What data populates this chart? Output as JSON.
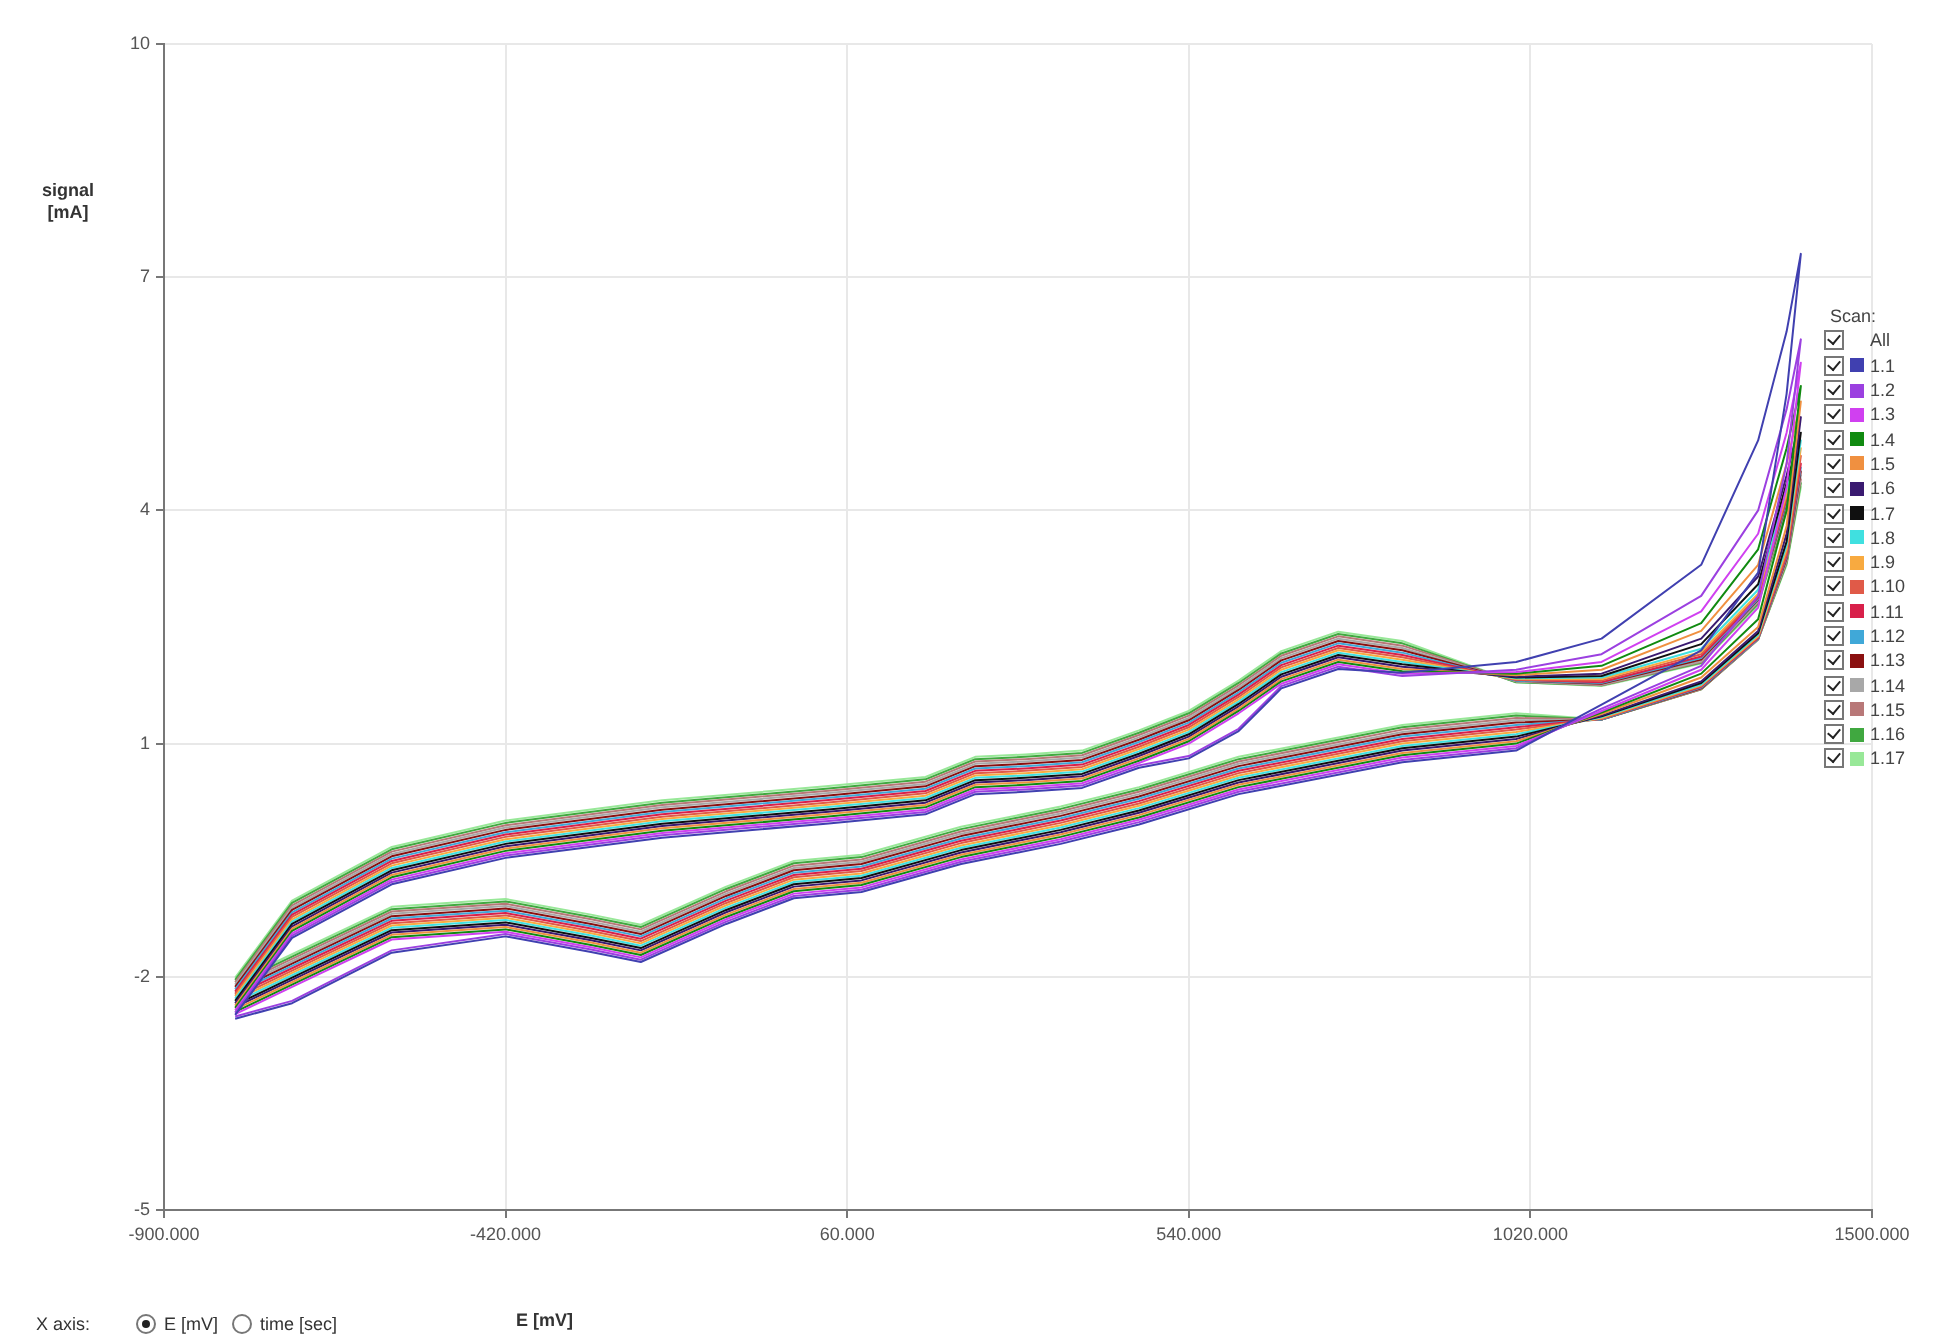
{
  "chart_data": {
    "type": "line",
    "xlabel": "E [mV]",
    "ylabel": "signal [mA]",
    "legend_title": "Scan:",
    "legend": "right",
    "grid": true,
    "annotations": [
      "All",
      "X axis:",
      "E [mV]",
      "time [sec]"
    ],
    "xlim": [
      -900,
      1500
    ],
    "ylim": [
      -5,
      10
    ],
    "xticks": [
      {
        "value": -900,
        "label": "-900.000"
      },
      {
        "value": -420,
        "label": "-420.000"
      },
      {
        "value": 60,
        "label": "60.000"
      },
      {
        "value": 540,
        "label": "540.000"
      },
      {
        "value": 1020,
        "label": "1020.000"
      },
      {
        "value": 1500,
        "label": "1500.000"
      }
    ],
    "yticks": [
      -5,
      -2,
      1,
      4,
      7,
      10
    ],
    "x": [
      -800,
      -720,
      -580,
      -420,
      -200,
      30,
      170,
      240,
      310,
      390,
      470,
      540,
      610,
      670,
      750,
      840,
      1000,
      1120,
      1260,
      1340,
      1380,
      1400,
      1380,
      1340,
      1260,
      1120,
      1000,
      840,
      610,
      470,
      360,
      220,
      80,
      -15,
      -110,
      -230,
      -300,
      -420,
      -580,
      -720,
      -800
    ],
    "series": [
      {
        "name": "1.1",
        "color": "#4040b0",
        "values": [
          -2.49,
          -1.5,
          -0.81,
          -0.47,
          -0.21,
          -0.03,
          0.09,
          0.35,
          0.38,
          0.43,
          0.69,
          0.81,
          1.16,
          1.71,
          1.96,
          1.91,
          2.05,
          2.35,
          3.3,
          4.9,
          6.3,
          7.3,
          5.5,
          3.2,
          2.2,
          1.5,
          0.91,
          0.76,
          0.35,
          -0.04,
          -0.29,
          -0.55,
          -0.91,
          -0.99,
          -1.32,
          -1.81,
          -1.68,
          -1.48,
          -1.69,
          -2.34,
          -2.54
        ]
      },
      {
        "name": "1.2",
        "color": "#9b40e0",
        "values": [
          -2.46,
          -1.47,
          -0.78,
          -0.44,
          -0.18,
          0.0,
          0.12,
          0.38,
          0.41,
          0.46,
          0.72,
          0.84,
          1.19,
          1.74,
          1.99,
          1.87,
          1.95,
          2.15,
          2.9,
          4.0,
          5.3,
          6.2,
          4.6,
          2.9,
          2.0,
          1.45,
          0.94,
          0.79,
          0.38,
          -0.01,
          -0.26,
          -0.52,
          -0.88,
          -0.96,
          -1.29,
          -1.78,
          -1.65,
          -1.45,
          -1.66,
          -2.31,
          -2.51
        ]
      },
      {
        "name": "1.3",
        "color": "#d040f0",
        "values": [
          -2.43,
          -1.44,
          -0.75,
          -0.41,
          -0.15,
          0.03,
          0.15,
          0.41,
          0.44,
          0.49,
          0.75,
          1.0,
          1.39,
          1.77,
          2.02,
          1.9,
          1.92,
          2.05,
          2.7,
          3.7,
          5.0,
          5.9,
          4.3,
          2.75,
          1.95,
          1.42,
          0.97,
          0.82,
          0.41,
          0.02,
          -0.23,
          -0.49,
          -0.85,
          -0.93,
          -1.26,
          -1.75,
          -1.62,
          -1.42,
          -1.52,
          -2.13,
          -2.48
        ]
      },
      {
        "name": "1.4",
        "color": "#108a10",
        "values": [
          -2.4,
          -1.41,
          -0.72,
          -0.38,
          -0.12,
          0.06,
          0.18,
          0.44,
          0.47,
          0.52,
          0.78,
          1.03,
          1.42,
          1.8,
          2.05,
          1.93,
          1.9,
          2.0,
          2.55,
          3.5,
          4.8,
          5.6,
          4.0,
          2.6,
          1.9,
          1.4,
          1.0,
          0.85,
          0.44,
          0.05,
          -0.2,
          -0.46,
          -0.82,
          -0.9,
          -1.23,
          -1.72,
          -1.59,
          -1.39,
          -1.49,
          -2.1,
          -2.45
        ]
      },
      {
        "name": "1.5",
        "color": "#f09040",
        "values": [
          -2.37,
          -1.38,
          -0.69,
          -0.35,
          -0.09,
          0.09,
          0.21,
          0.47,
          0.5,
          0.55,
          0.81,
          1.06,
          1.45,
          1.83,
          2.08,
          1.96,
          1.88,
          1.95,
          2.45,
          3.3,
          4.6,
          5.4,
          3.8,
          2.5,
          1.85,
          1.38,
          1.03,
          0.88,
          0.47,
          0.08,
          -0.17,
          -0.43,
          -0.79,
          -0.87,
          -1.2,
          -1.69,
          -1.56,
          -1.36,
          -1.46,
          -2.07,
          -2.42
        ]
      },
      {
        "name": "1.6",
        "color": "#3a1a70",
        "values": [
          -2.34,
          -1.35,
          -0.66,
          -0.32,
          -0.06,
          0.12,
          0.24,
          0.5,
          0.53,
          0.58,
          0.84,
          1.09,
          1.48,
          1.86,
          2.11,
          1.99,
          1.86,
          1.9,
          2.35,
          3.15,
          4.45,
          5.2,
          3.7,
          2.45,
          1.8,
          1.36,
          1.06,
          0.91,
          0.5,
          0.11,
          -0.14,
          -0.4,
          -0.76,
          -0.84,
          -1.17,
          -1.66,
          -1.53,
          -1.33,
          -1.43,
          -2.04,
          -2.39
        ]
      },
      {
        "name": "1.7",
        "color": "#101010",
        "values": [
          -2.31,
          -1.32,
          -0.63,
          -0.29,
          -0.03,
          0.15,
          0.27,
          0.53,
          0.56,
          0.61,
          0.87,
          1.12,
          1.51,
          1.89,
          2.14,
          2.02,
          1.85,
          1.87,
          2.28,
          3.05,
          4.35,
          5.0,
          3.6,
          2.42,
          1.78,
          1.35,
          1.09,
          0.94,
          0.53,
          0.14,
          -0.11,
          -0.37,
          -0.73,
          -0.81,
          -1.14,
          -1.63,
          -1.5,
          -1.3,
          -1.4,
          -2.01,
          -2.36
        ]
      },
      {
        "name": "1.8",
        "color": "#40e0e0",
        "values": [
          -2.28,
          -1.29,
          -0.6,
          -0.26,
          0.0,
          0.18,
          0.3,
          0.56,
          0.59,
          0.64,
          0.9,
          1.15,
          1.54,
          1.92,
          2.17,
          2.05,
          1.84,
          1.85,
          2.22,
          2.98,
          4.28,
          4.9,
          3.55,
          2.4,
          1.76,
          1.34,
          1.12,
          0.97,
          0.56,
          0.17,
          -0.08,
          -0.34,
          -0.7,
          -0.78,
          -1.11,
          -1.6,
          -1.47,
          -1.27,
          -1.37,
          -1.98,
          -2.33
        ]
      },
      {
        "name": "1.9",
        "color": "#f8aa40",
        "values": [
          -2.25,
          -1.26,
          -0.57,
          -0.23,
          0.03,
          0.21,
          0.33,
          0.59,
          0.62,
          0.67,
          0.93,
          1.18,
          1.57,
          1.95,
          2.2,
          2.08,
          1.83,
          1.83,
          2.18,
          2.93,
          4.22,
          4.8,
          3.5,
          2.38,
          1.75,
          1.33,
          1.15,
          1.0,
          0.59,
          0.2,
          -0.05,
          -0.31,
          -0.67,
          -0.75,
          -1.08,
          -1.57,
          -1.44,
          -1.24,
          -1.34,
          -1.95,
          -2.3
        ]
      },
      {
        "name": "1.10",
        "color": "#e05a48",
        "values": [
          -2.22,
          -1.23,
          -0.54,
          -0.2,
          0.06,
          0.24,
          0.36,
          0.62,
          0.65,
          0.7,
          0.96,
          1.21,
          1.6,
          1.98,
          2.23,
          2.11,
          1.82,
          1.81,
          2.15,
          2.9,
          4.18,
          4.7,
          3.45,
          2.37,
          1.74,
          1.32,
          1.18,
          1.03,
          0.62,
          0.23,
          -0.02,
          -0.28,
          -0.64,
          -0.72,
          -1.05,
          -1.54,
          -1.41,
          -1.21,
          -1.31,
          -1.92,
          -2.27
        ]
      },
      {
        "name": "1.11",
        "color": "#d8204a",
        "values": [
          -2.19,
          -1.2,
          -0.51,
          -0.17,
          0.09,
          0.27,
          0.39,
          0.65,
          0.68,
          0.73,
          0.99,
          1.24,
          1.63,
          2.01,
          2.26,
          2.14,
          1.82,
          1.79,
          2.12,
          2.88,
          4.15,
          4.6,
          3.42,
          2.36,
          1.73,
          1.32,
          1.21,
          1.06,
          0.65,
          0.26,
          0.01,
          -0.25,
          -0.61,
          -0.69,
          -1.02,
          -1.51,
          -1.38,
          -1.18,
          -1.28,
          -1.89,
          -2.24
        ]
      },
      {
        "name": "1.12",
        "color": "#40a8d8",
        "values": [
          -2.16,
          -1.17,
          -0.48,
          -0.14,
          0.12,
          0.3,
          0.42,
          0.68,
          0.71,
          0.76,
          1.02,
          1.27,
          1.66,
          2.04,
          2.29,
          2.17,
          1.81,
          1.78,
          2.1,
          2.86,
          4.12,
          4.55,
          3.4,
          2.35,
          1.72,
          1.31,
          1.24,
          1.09,
          0.68,
          0.29,
          0.04,
          -0.22,
          -0.58,
          -0.66,
          -0.99,
          -1.48,
          -1.35,
          -1.15,
          -1.25,
          -1.86,
          -2.21
        ]
      },
      {
        "name": "1.13",
        "color": "#8a1010",
        "values": [
          -2.13,
          -1.14,
          -0.45,
          -0.11,
          0.15,
          0.33,
          0.45,
          0.71,
          0.74,
          0.79,
          1.05,
          1.3,
          1.69,
          2.07,
          2.32,
          2.2,
          1.81,
          1.77,
          2.08,
          2.85,
          4.1,
          4.5,
          3.38,
          2.35,
          1.71,
          1.31,
          1.27,
          1.12,
          0.71,
          0.32,
          0.07,
          -0.19,
          -0.55,
          -0.63,
          -0.96,
          -1.45,
          -1.32,
          -1.12,
          -1.22,
          -1.83,
          -2.18
        ]
      },
      {
        "name": "1.14",
        "color": "#a8a8a8",
        "values": [
          -2.1,
          -1.11,
          -0.42,
          -0.08,
          0.18,
          0.36,
          0.48,
          0.74,
          0.77,
          0.82,
          1.08,
          1.33,
          1.72,
          2.1,
          2.35,
          2.23,
          1.8,
          1.76,
          2.06,
          2.83,
          4.07,
          4.45,
          3.36,
          2.34,
          1.71,
          1.31,
          1.3,
          1.15,
          0.74,
          0.35,
          0.1,
          -0.16,
          -0.52,
          -0.6,
          -0.93,
          -1.42,
          -1.29,
          -1.09,
          -1.19,
          -1.8,
          -2.15
        ]
      },
      {
        "name": "1.15",
        "color": "#b87878",
        "values": [
          -2.07,
          -1.08,
          -0.39,
          -0.05,
          0.21,
          0.39,
          0.51,
          0.77,
          0.8,
          0.85,
          1.11,
          1.36,
          1.75,
          2.13,
          2.38,
          2.26,
          1.8,
          1.75,
          2.05,
          2.82,
          4.05,
          4.4,
          3.34,
          2.34,
          1.7,
          1.31,
          1.33,
          1.18,
          0.77,
          0.38,
          0.13,
          -0.13,
          -0.49,
          -0.57,
          -0.9,
          -1.39,
          -1.26,
          -1.06,
          -1.16,
          -1.77,
          -2.12
        ]
      },
      {
        "name": "1.16",
        "color": "#40a840",
        "values": [
          -2.04,
          -1.05,
          -0.36,
          -0.02,
          0.24,
          0.42,
          0.54,
          0.8,
          0.83,
          0.88,
          1.14,
          1.39,
          1.78,
          2.16,
          2.41,
          2.29,
          1.79,
          1.75,
          2.04,
          2.8,
          4.03,
          4.35,
          3.32,
          2.34,
          1.7,
          1.31,
          1.36,
          1.21,
          0.8,
          0.41,
          0.16,
          -0.1,
          -0.46,
          -0.54,
          -0.87,
          -1.36,
          -1.23,
          -1.03,
          -1.13,
          -1.74,
          -2.09
        ]
      },
      {
        "name": "1.17",
        "color": "#98e898",
        "values": [
          -2.01,
          -1.02,
          -0.33,
          0.01,
          0.27,
          0.45,
          0.57,
          0.83,
          0.86,
          0.91,
          1.17,
          1.42,
          1.81,
          2.19,
          2.44,
          2.32,
          1.79,
          1.74,
          2.03,
          2.78,
          4.0,
          4.3,
          3.3,
          2.34,
          1.7,
          1.31,
          1.39,
          1.24,
          0.83,
          0.44,
          0.19,
          -0.07,
          -0.43,
          -0.51,
          -0.84,
          -1.33,
          -1.2,
          -1.0,
          -1.1,
          -1.71,
          -2.06
        ]
      }
    ]
  }
}
